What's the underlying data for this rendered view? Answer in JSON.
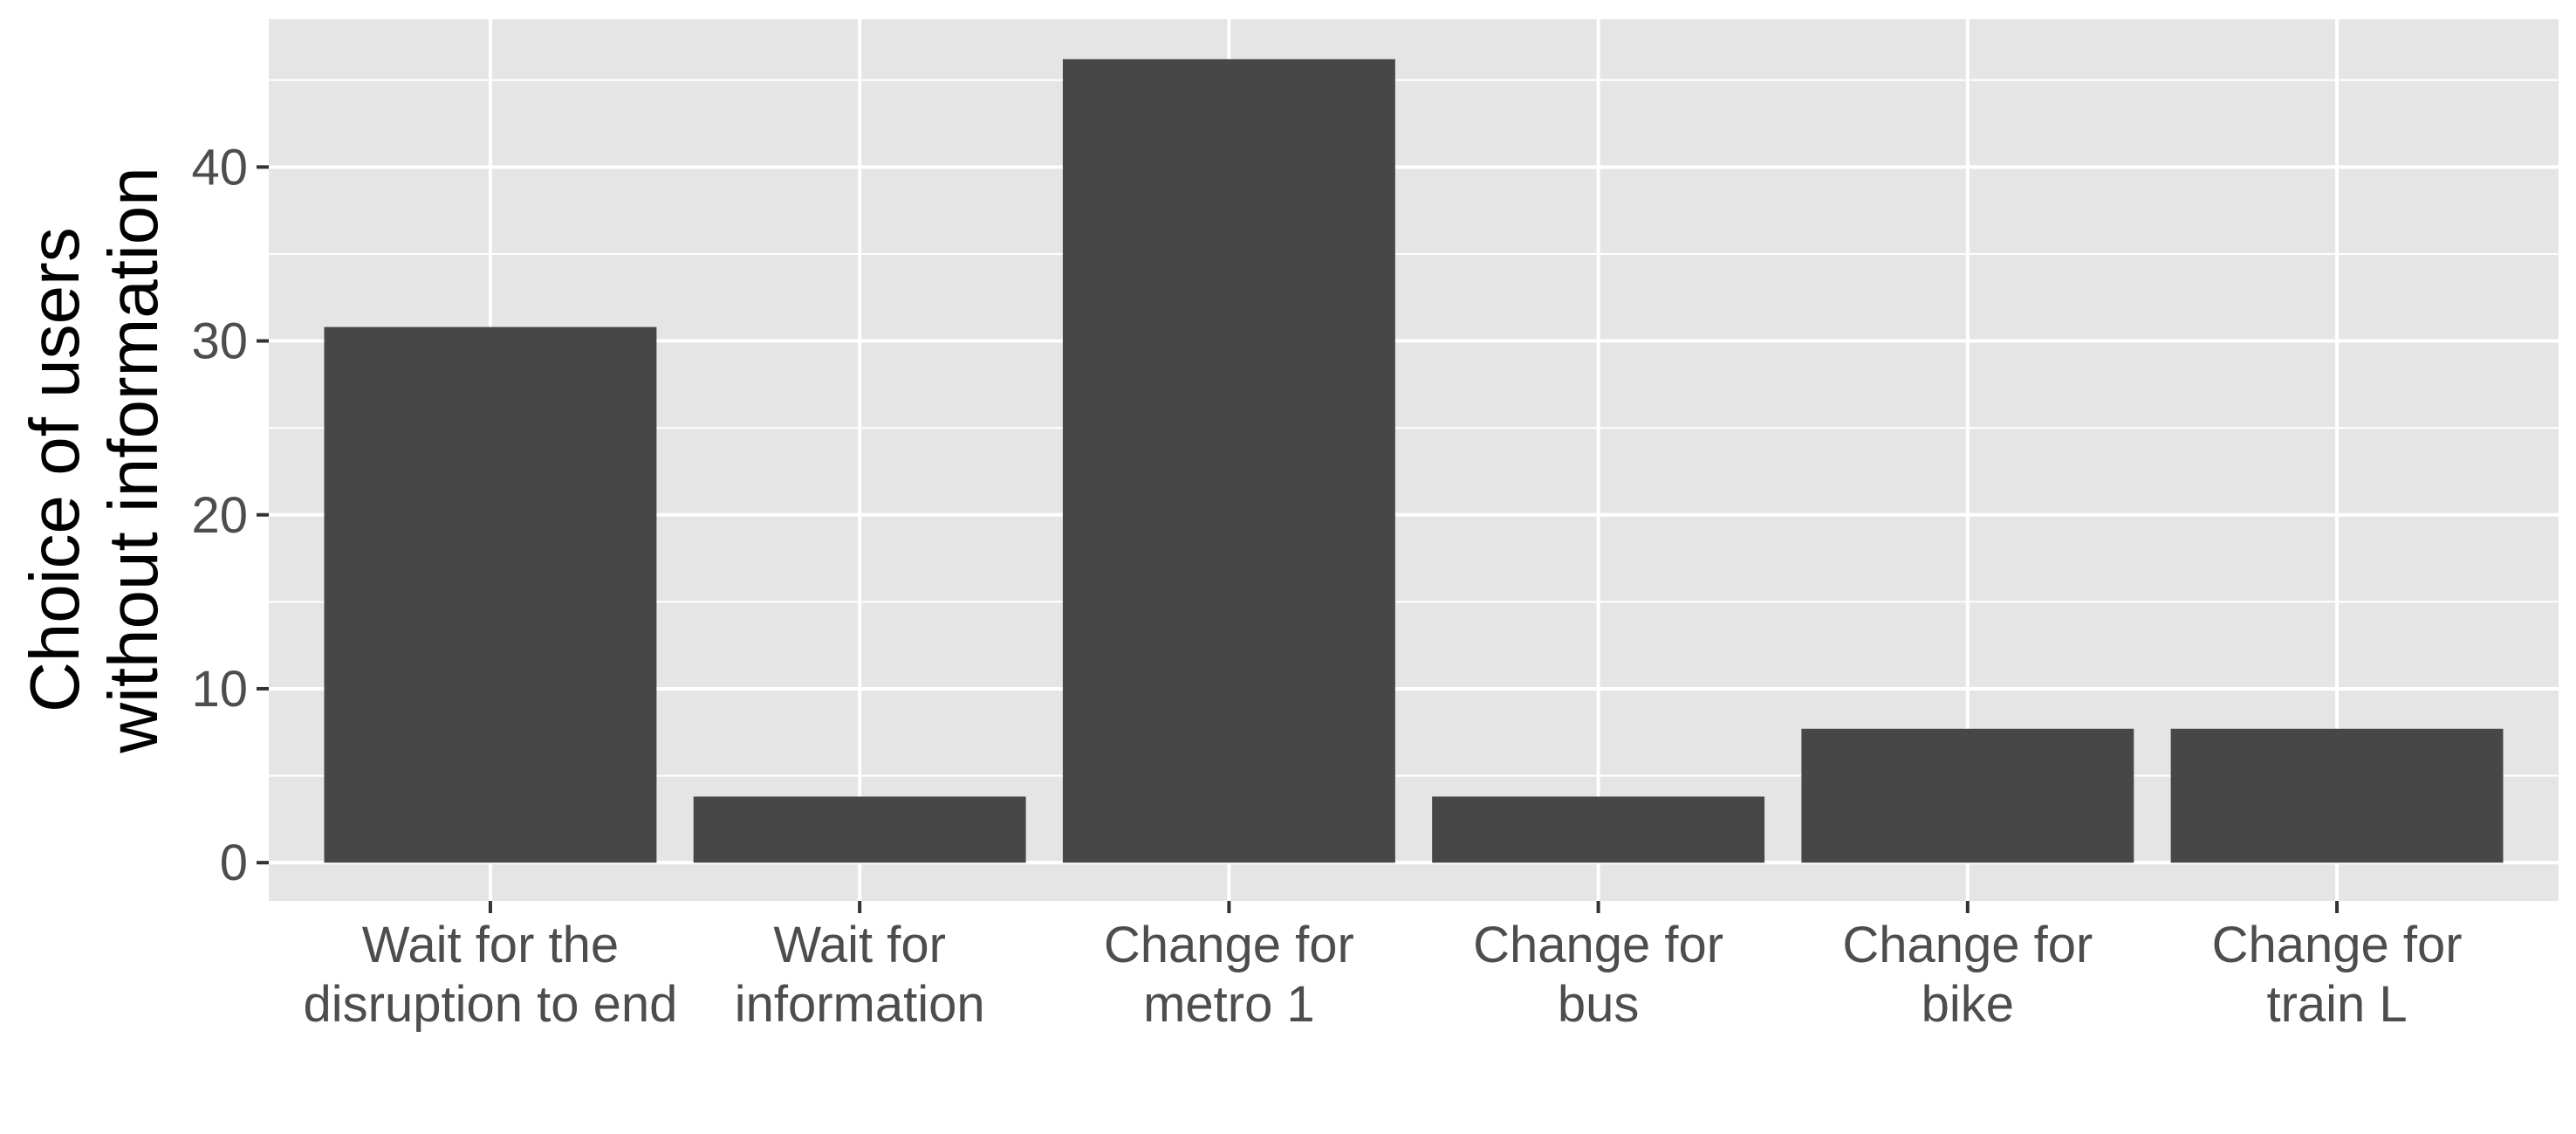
{
  "chart_data": {
    "type": "bar",
    "categories": [
      [
        "Wait for the",
        "disruption to end"
      ],
      [
        "Wait for",
        "information"
      ],
      [
        "Change for",
        "metro 1"
      ],
      [
        "Change for",
        "bus"
      ],
      [
        "Change for",
        "bike"
      ],
      [
        "Change for",
        "train L"
      ]
    ],
    "values": [
      30.8,
      3.8,
      46.2,
      3.8,
      7.7,
      7.7
    ],
    "title": "",
    "xlabel": "",
    "ylabel": [
      "Choice of users",
      "without information"
    ],
    "ylim": [
      -2.2,
      48.5
    ],
    "yticks": [
      0,
      10,
      20,
      30,
      40
    ],
    "grid": true,
    "colors": {
      "panel": "#e5e5e5",
      "grid": "#ffffff",
      "bar": "#474747",
      "tick": "#4d4d4d"
    }
  }
}
